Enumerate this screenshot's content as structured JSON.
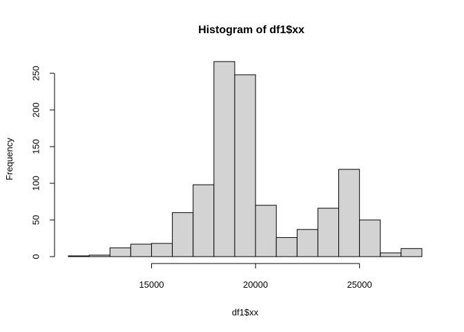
{
  "chart_data": {
    "type": "bar",
    "title": "Histogram of df1$xx",
    "xlabel": "df1$xx",
    "ylabel": "Frequency",
    "bin_width": 1000,
    "bins": [
      {
        "start": 11000,
        "end": 12000,
        "count": 1
      },
      {
        "start": 12000,
        "end": 13000,
        "count": 2
      },
      {
        "start": 13000,
        "end": 14000,
        "count": 12
      },
      {
        "start": 14000,
        "end": 15000,
        "count": 17
      },
      {
        "start": 15000,
        "end": 16000,
        "count": 18
      },
      {
        "start": 16000,
        "end": 17000,
        "count": 60
      },
      {
        "start": 17000,
        "end": 18000,
        "count": 98
      },
      {
        "start": 18000,
        "end": 19000,
        "count": 266
      },
      {
        "start": 19000,
        "end": 20000,
        "count": 248
      },
      {
        "start": 20000,
        "end": 21000,
        "count": 70
      },
      {
        "start": 21000,
        "end": 22000,
        "count": 26
      },
      {
        "start": 22000,
        "end": 23000,
        "count": 37
      },
      {
        "start": 23000,
        "end": 24000,
        "count": 66
      },
      {
        "start": 24000,
        "end": 25000,
        "count": 119
      },
      {
        "start": 25000,
        "end": 26000,
        "count": 50
      },
      {
        "start": 26000,
        "end": 27000,
        "count": 5
      },
      {
        "start": 27000,
        "end": 28000,
        "count": 11
      }
    ],
    "x_ticks": [
      15000,
      20000,
      25000
    ],
    "y_ticks": [
      0,
      50,
      100,
      150,
      200,
      250
    ],
    "xlim": [
      11000,
      28000
    ],
    "ylim": [
      0,
      266
    ],
    "grid": false,
    "legend": "none"
  }
}
